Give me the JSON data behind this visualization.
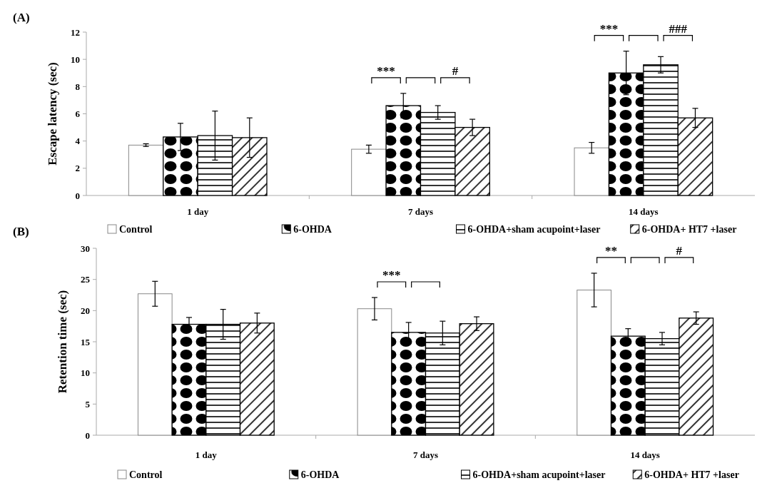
{
  "chart_data": [
    {
      "type": "bar",
      "title": "(A)",
      "ylabel": "Escape latency (sec)",
      "categories": [
        "1 day",
        "7 days",
        "14 days"
      ],
      "ylim": [
        0,
        12
      ],
      "yticks": [
        0,
        2,
        4,
        6,
        8,
        10,
        12
      ],
      "legend": "bottom",
      "annotations": [
        "***",
        "#",
        "***",
        "###"
      ],
      "series": [
        {
          "name": "Control",
          "color": "#ffffff",
          "values": [
            3.7,
            3.4,
            3.5
          ],
          "errors": [
            0.1,
            0.3,
            0.4
          ]
        },
        {
          "name": "6-OHDA",
          "color": "#000000",
          "values": [
            4.3,
            6.6,
            9.0
          ],
          "errors": [
            1.0,
            0.9,
            1.6
          ]
        },
        {
          "name": "6-OHDA+sham acupoint+laser",
          "color": "#000000",
          "values": [
            4.4,
            6.1,
            9.6
          ],
          "errors": [
            1.8,
            0.5,
            0.6
          ]
        },
        {
          "name": "6-OHDA+ HT7 +laser",
          "color": "#000000",
          "values": [
            4.25,
            5.0,
            5.7
          ],
          "errors": [
            1.45,
            0.6,
            0.7
          ]
        }
      ]
    },
    {
      "type": "bar",
      "title": "(B)",
      "ylabel": "Retention time (sec)",
      "categories": [
        "1 day",
        "7 days",
        "14 days"
      ],
      "ylim": [
        0,
        30
      ],
      "yticks": [
        0,
        5,
        10,
        15,
        20,
        25,
        30
      ],
      "legend": "bottom",
      "annotations": [
        "***",
        "**",
        "#"
      ],
      "series": [
        {
          "name": "Control",
          "color": "#ffffff",
          "values": [
            22.7,
            20.3,
            23.3
          ],
          "errors": [
            2.0,
            1.8,
            2.7
          ]
        },
        {
          "name": "6-OHDA",
          "color": "#000000",
          "values": [
            17.8,
            16.5,
            15.9
          ],
          "errors": [
            1.1,
            1.6,
            1.2
          ]
        },
        {
          "name": "6-OHDA+sham acupoint+laser",
          "color": "#000000",
          "values": [
            17.8,
            16.4,
            15.5
          ],
          "errors": [
            2.4,
            1.9,
            1.0
          ]
        },
        {
          "name": "6-OHDA+ HT7 +laser",
          "color": "#000000",
          "values": [
            18.0,
            17.9,
            18.8
          ],
          "errors": [
            1.6,
            1.1,
            1.0
          ]
        }
      ]
    }
  ]
}
